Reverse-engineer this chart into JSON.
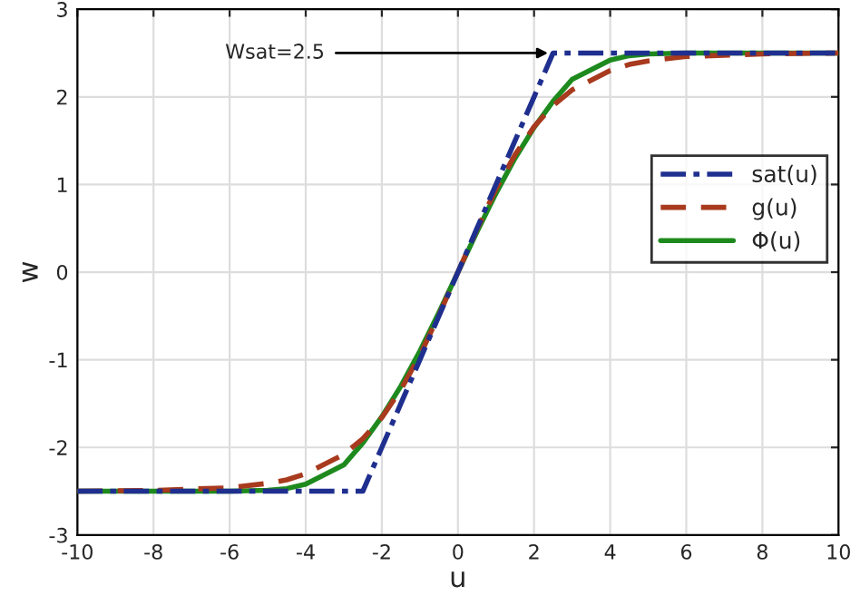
{
  "chart_data": {
    "type": "line",
    "xlabel": "u",
    "ylabel": "w",
    "x": [
      -10,
      -8,
      -6,
      -5,
      -4.5,
      -4,
      -3,
      -2.5,
      -2,
      -1.5,
      -1,
      -0.5,
      0,
      0.5,
      1,
      1.5,
      2,
      2.5,
      3,
      4,
      4.5,
      5,
      6,
      8,
      10
    ],
    "series": [
      {
        "name": "sat(u)",
        "color": "#1f2f8f",
        "line_style": "dashdot",
        "values": [
          -2.5,
          -2.5,
          -2.5,
          -2.5,
          -2.5,
          -2.5,
          -2.5,
          -2.5,
          -2,
          -1.5,
          -1,
          -0.5,
          0,
          0.5,
          1,
          1.5,
          2,
          2.5,
          2.5,
          2.5,
          2.5,
          2.5,
          2.5,
          2.5,
          2.5
        ]
      },
      {
        "name": "g(u)",
        "color": "#a83a1e",
        "line_style": "dashed",
        "values": [
          -2.5,
          -2.49,
          -2.46,
          -2.41,
          -2.37,
          -2.3,
          -2.08,
          -1.9,
          -1.66,
          -1.34,
          -0.95,
          -0.49,
          0,
          0.49,
          0.95,
          1.34,
          1.66,
          1.9,
          2.08,
          2.3,
          2.37,
          2.41,
          2.46,
          2.49,
          2.5
        ]
      },
      {
        "name": "Φ(u)",
        "color": "#1e8a1e",
        "line_style": "solid",
        "values": [
          -2.5,
          -2.5,
          -2.5,
          -2.49,
          -2.47,
          -2.42,
          -2.2,
          -1.95,
          -1.65,
          -1.3,
          -0.9,
          -0.46,
          0,
          0.46,
          0.9,
          1.3,
          1.65,
          1.95,
          2.2,
          2.42,
          2.47,
          2.49,
          2.5,
          2.5,
          2.5
        ]
      }
    ],
    "xlim": [
      -10,
      10
    ],
    "ylim": [
      -3,
      3
    ],
    "xticks": [
      -10,
      -8,
      -6,
      -4,
      -2,
      0,
      2,
      4,
      6,
      8,
      10
    ],
    "yticks": [
      -3,
      -2,
      -1,
      0,
      1,
      2,
      3
    ],
    "grid": true,
    "legend": "right",
    "annotations": [
      {
        "text": "Wsat=2.5",
        "x": 2.5,
        "y": 2.5
      }
    ]
  }
}
